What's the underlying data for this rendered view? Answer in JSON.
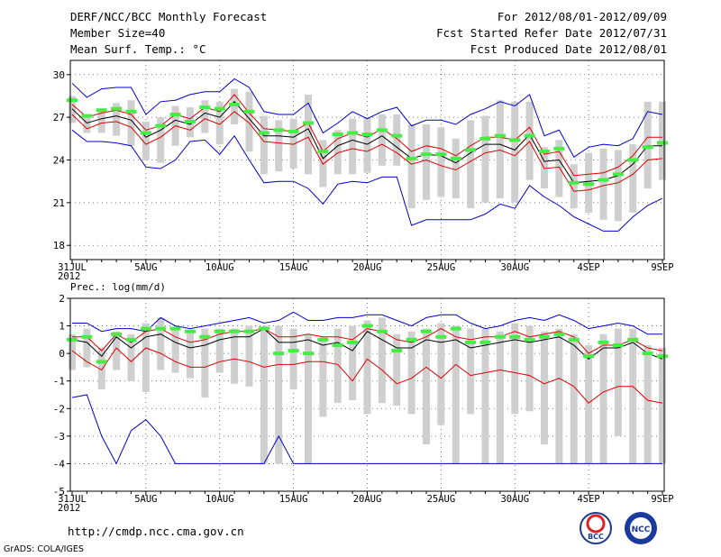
{
  "header": {
    "title": "DERF/NCC/BCC Monthly Forecast",
    "member_size": "Member Size=40",
    "variable": "Mean Surf. Temp.: °C",
    "period": "For 2012/08/01-2012/09/09",
    "started": "Fcst Started Refer Date 2012/07/31",
    "produced": "Fcst Produced Date 2012/08/01"
  },
  "footer": {
    "url": "http://cmdp.ncc.cma.gov.cn",
    "grads": "GrADS: COLA/IGES",
    "logo_bcc": "BCC",
    "logo_ncc": "NCC"
  },
  "colors": {
    "envelope": "#0000cc",
    "spread": "#dd0000",
    "mean": "#000000",
    "box": "#cfcfcf",
    "median": "#44ee44"
  },
  "chart_data": [
    {
      "type": "line",
      "title": "Mean Surf. Temp.: °C",
      "ylabel": "°C",
      "ylim": [
        17,
        31
      ],
      "yticks": [
        18,
        21,
        24,
        27,
        30
      ],
      "x_days": 40,
      "xtick_labels": [
        "31JUL",
        "5AUG",
        "10AUG",
        "15AUG",
        "20AUG",
        "25AUG",
        "30AUG",
        "4SEP",
        "9SEP"
      ],
      "xtick_days": [
        0,
        5,
        10,
        15,
        20,
        25,
        30,
        35,
        40
      ],
      "year_label": "2012",
      "series": [
        {
          "name": "ensemble max",
          "color": "blue",
          "values": [
            29.4,
            28.4,
            29.0,
            29.1,
            29.1,
            27.2,
            28.1,
            28.2,
            28.6,
            28.8,
            28.8,
            29.7,
            29.1,
            27.4,
            27.2,
            27.2,
            28.0,
            25.9,
            26.6,
            27.4,
            26.9,
            27.4,
            27.7,
            26.4,
            26.8,
            26.8,
            26.5,
            27.2,
            27.6,
            28.1,
            27.8,
            28.6,
            25.7,
            26.1,
            24.2,
            24.9,
            25.1,
            25.0,
            25.5,
            27.4,
            27.2
          ]
        },
        {
          "name": "upper spread",
          "color": "red",
          "values": [
            27.9,
            27.0,
            27.3,
            27.5,
            27.2,
            26.1,
            26.4,
            27.2,
            26.9,
            27.7,
            27.4,
            28.6,
            27.3,
            26.2,
            26.1,
            26.0,
            26.6,
            24.6,
            25.5,
            25.9,
            25.6,
            26.2,
            25.5,
            24.6,
            25.0,
            24.8,
            24.3,
            25.0,
            25.6,
            25.6,
            25.4,
            26.3,
            24.4,
            24.6,
            22.9,
            23.0,
            23.1,
            23.5,
            24.3,
            25.6,
            25.6
          ]
        },
        {
          "name": "ensemble mean",
          "color": "black",
          "values": [
            27.6,
            26.6,
            26.9,
            27.1,
            26.8,
            25.6,
            26.1,
            26.8,
            26.5,
            27.3,
            27.0,
            28.1,
            26.9,
            25.7,
            25.7,
            25.6,
            26.2,
            24.1,
            25.0,
            25.4,
            25.1,
            25.7,
            24.9,
            24.1,
            24.4,
            24.3,
            23.8,
            24.5,
            25.1,
            25.1,
            24.7,
            25.8,
            23.9,
            24.0,
            22.4,
            22.5,
            22.6,
            22.9,
            23.7,
            25.0,
            25.0
          ]
        },
        {
          "name": "lower spread",
          "color": "red",
          "values": [
            27.2,
            26.2,
            26.6,
            26.7,
            26.3,
            25.1,
            25.6,
            26.4,
            26.1,
            26.9,
            26.5,
            27.4,
            26.6,
            25.3,
            25.2,
            25.1,
            25.6,
            23.7,
            24.5,
            24.8,
            24.6,
            25.1,
            24.5,
            23.7,
            24.0,
            23.6,
            23.3,
            23.9,
            24.5,
            24.7,
            24.3,
            25.3,
            23.4,
            23.5,
            21.8,
            21.9,
            22.2,
            22.4,
            23.0,
            24.0,
            24.1
          ]
        },
        {
          "name": "ensemble min",
          "color": "blue",
          "values": [
            26.1,
            25.3,
            25.3,
            25.2,
            25.0,
            23.5,
            23.4,
            24.0,
            25.3,
            25.4,
            24.4,
            25.7,
            24.0,
            22.4,
            22.5,
            22.5,
            22.0,
            20.9,
            22.3,
            22.5,
            22.4,
            22.8,
            22.8,
            19.4,
            19.8,
            19.8,
            19.8,
            19.8,
            20.2,
            20.9,
            20.6,
            22.2,
            21.4,
            20.8,
            20.0,
            19.5,
            19.0,
            19.0,
            20.0,
            20.8,
            21.3
          ]
        },
        {
          "name": "boxes low",
          "color": "grey",
          "values": [
            26.6,
            25.9,
            25.9,
            25.7,
            25.0,
            24.0,
            23.8,
            25.0,
            25.6,
            25.9,
            25.1,
            26.5,
            24.6,
            23.0,
            23.2,
            23.4,
            23.0,
            22.1,
            23.0,
            23.0,
            23.1,
            23.6,
            23.6,
            20.6,
            21.2,
            21.4,
            21.3,
            20.6,
            21.0,
            21.3,
            21.0,
            22.6,
            22.0,
            21.4,
            20.6,
            20.3,
            19.8,
            19.7,
            20.3,
            22.0,
            22.6
          ]
        },
        {
          "name": "boxes high",
          "color": "grey",
          "values": [
            28.5,
            27.2,
            27.6,
            28.0,
            28.2,
            26.7,
            27.0,
            27.8,
            27.7,
            28.2,
            28.1,
            29.0,
            28.8,
            27.1,
            26.8,
            26.9,
            28.6,
            25.4,
            26.1,
            26.9,
            27.0,
            27.2,
            27.2,
            26.5,
            26.5,
            26.3,
            25.5,
            26.8,
            27.1,
            28.2,
            28.1,
            28.1,
            24.9,
            25.4,
            23.7,
            24.5,
            24.8,
            24.7,
            25.1,
            28.1,
            28.1
          ]
        },
        {
          "name": "median",
          "color": "green",
          "values": [
            28.2,
            27.1,
            27.5,
            27.6,
            27.4,
            25.9,
            26.4,
            27.2,
            26.7,
            27.7,
            27.6,
            27.9,
            27.4,
            25.9,
            26.1,
            26.0,
            26.6,
            24.6,
            25.8,
            25.9,
            25.8,
            26.1,
            25.7,
            24.1,
            24.4,
            24.4,
            24.1,
            24.7,
            25.5,
            25.7,
            25.4,
            25.7,
            24.6,
            24.8,
            22.4,
            22.3,
            22.6,
            23.0,
            24.0,
            24.9,
            25.2
          ]
        }
      ]
    },
    {
      "type": "line",
      "title": "Prec.: log(mm/d)",
      "ylabel": "log(mm/d)",
      "ylim": [
        -5,
        2
      ],
      "yticks": [
        -5,
        -4,
        -3,
        -2,
        -1,
        0,
        1,
        2
      ],
      "x_days": 40,
      "xtick_labels": [
        "31JUL",
        "5AUG",
        "10AUG",
        "15AUG",
        "20AUG",
        "25AUG",
        "30AUG",
        "4SEP",
        "9SEP"
      ],
      "xtick_days": [
        0,
        5,
        10,
        15,
        20,
        25,
        30,
        35,
        40
      ],
      "year_label": "2012",
      "series": [
        {
          "name": "ensemble max",
          "color": "blue",
          "values": [
            1.1,
            1.1,
            0.8,
            0.9,
            0.9,
            0.8,
            1.3,
            1.0,
            0.9,
            1.0,
            1.1,
            1.2,
            1.3,
            1.1,
            1.2,
            1.5,
            1.2,
            1.2,
            1.3,
            1.3,
            1.4,
            1.4,
            1.2,
            1.0,
            1.3,
            1.4,
            1.4,
            1.1,
            0.9,
            1.0,
            1.2,
            1.3,
            1.2,
            1.4,
            1.2,
            0.9,
            1.0,
            1.1,
            1.0,
            0.7,
            0.7
          ]
        },
        {
          "name": "upper spread",
          "color": "red",
          "values": [
            0.6,
            0.6,
            0.1,
            0.7,
            0.4,
            0.8,
            0.9,
            0.6,
            0.4,
            0.5,
            0.7,
            0.8,
            0.8,
            0.9,
            0.6,
            0.6,
            0.7,
            0.6,
            0.6,
            0.5,
            0.9,
            0.8,
            0.5,
            0.4,
            0.6,
            0.9,
            0.6,
            0.5,
            0.6,
            0.6,
            0.8,
            0.6,
            0.7,
            0.8,
            0.6,
            0.0,
            0.3,
            0.3,
            0.5,
            0.2,
            0.1
          ]
        },
        {
          "name": "ensemble mean",
          "color": "black",
          "values": [
            0.5,
            0.4,
            -0.1,
            0.6,
            0.2,
            0.6,
            0.7,
            0.4,
            0.2,
            0.3,
            0.5,
            0.6,
            0.6,
            0.9,
            0.4,
            0.4,
            0.5,
            0.3,
            0.4,
            0.1,
            0.8,
            0.5,
            0.2,
            0.2,
            0.5,
            0.4,
            0.5,
            0.2,
            0.3,
            0.4,
            0.5,
            0.4,
            0.5,
            0.6,
            0.3,
            -0.2,
            0.2,
            0.2,
            0.4,
            0.0,
            -0.2
          ]
        },
        {
          "name": "lower spread",
          "color": "red",
          "values": [
            0.1,
            -0.3,
            -0.6,
            0.2,
            -0.3,
            0.2,
            0.0,
            -0.3,
            -0.5,
            -0.5,
            -0.3,
            -0.2,
            -0.3,
            -0.5,
            -0.4,
            -0.4,
            -0.3,
            -0.3,
            -0.4,
            -1.0,
            -0.2,
            -0.6,
            -1.1,
            -0.9,
            -0.5,
            -0.9,
            -0.4,
            -0.8,
            -0.7,
            -0.6,
            -0.7,
            -0.8,
            -1.1,
            -0.9,
            -1.2,
            -1.8,
            -1.4,
            -1.2,
            -1.2,
            -1.7,
            -1.8
          ]
        },
        {
          "name": "ensemble min",
          "color": "blue",
          "values": [
            -1.6,
            -1.5,
            -3.0,
            -4.0,
            -2.8,
            -2.4,
            -3.0,
            -4.0,
            -4.0,
            -4.0,
            -4.0,
            -4.0,
            -4.0,
            -4.0,
            -3.0,
            -4.0,
            -4.0,
            -4.0,
            -4.0,
            -4.0,
            -4.0,
            -4.0,
            -4.0,
            -4.0,
            -4.0,
            -4.0,
            -4.0,
            -4.0,
            -4.0,
            -4.0,
            -4.0,
            -4.0,
            -4.0,
            -4.0,
            -4.0,
            -4.0,
            -4.0,
            -4.0,
            -4.0,
            -4.0,
            -4.0
          ]
        },
        {
          "name": "boxes low",
          "color": "grey",
          "values": [
            -0.6,
            -0.5,
            -1.3,
            -0.6,
            -1.0,
            -1.4,
            -0.6,
            -0.7,
            -0.9,
            -1.6,
            -0.7,
            -1.1,
            -1.2,
            -4.0,
            -4.0,
            -1.3,
            -4.0,
            -2.3,
            -1.8,
            -1.7,
            -2.2,
            -1.8,
            -1.9,
            -2.2,
            -3.3,
            -2.6,
            -4.0,
            -2.2,
            -4.0,
            -4.0,
            -2.2,
            -2.1,
            -3.3,
            -4.0,
            -4.0,
            -4.0,
            -4.0,
            -3.0,
            -4.0,
            -4.0,
            -4.0
          ]
        },
        {
          "name": "boxes high",
          "color": "grey",
          "values": [
            0.7,
            0.9,
            0.2,
            0.8,
            0.7,
            1.1,
            1.3,
            0.9,
            0.8,
            0.9,
            0.9,
            0.9,
            1.0,
            1.0,
            1.0,
            0.9,
            0.7,
            0.6,
            0.9,
            1.0,
            1.2,
            1.3,
            0.7,
            0.8,
            0.9,
            1.1,
            1.0,
            0.9,
            0.9,
            0.8,
            1.1,
            1.0,
            0.8,
            0.9,
            0.7,
            0.3,
            0.7,
            0.9,
            0.9,
            0.3,
            0.2
          ]
        },
        {
          "name": "median",
          "color": "green",
          "values": [
            0.5,
            0.6,
            -0.3,
            0.7,
            0.5,
            0.9,
            0.9,
            0.9,
            0.8,
            0.6,
            0.8,
            0.8,
            0.8,
            0.9,
            0.0,
            0.1,
            0.0,
            0.5,
            0.3,
            0.4,
            1.0,
            0.8,
            0.1,
            0.5,
            0.8,
            0.6,
            0.9,
            0.4,
            0.4,
            0.6,
            0.6,
            0.5,
            0.6,
            0.7,
            0.5,
            -0.1,
            0.4,
            0.3,
            0.5,
            0.0,
            -0.1
          ]
        }
      ]
    }
  ]
}
